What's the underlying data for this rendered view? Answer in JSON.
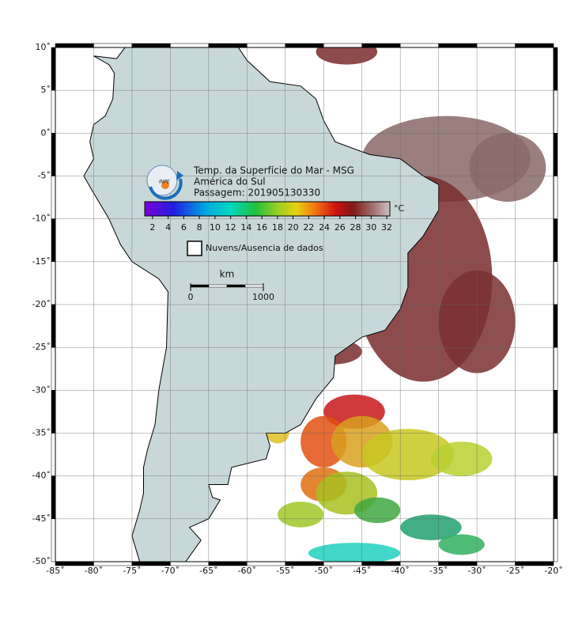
{
  "map": {
    "title": "Temp. da Superfície do Mar - MSG",
    "subtitle": "América do Sul",
    "pass": "Passagem: 201905130330",
    "logo": "INPE",
    "lon_range": [
      -85,
      -20
    ],
    "lat_range": [
      -50,
      10
    ],
    "lon_ticks": [
      {
        "value": -85,
        "label": "-85˚"
      },
      {
        "value": -80,
        "label": "-80˚"
      },
      {
        "value": -75,
        "label": "-75˚"
      },
      {
        "value": -70,
        "label": "-70˚"
      },
      {
        "value": -65,
        "label": "-65˚"
      },
      {
        "value": -60,
        "label": "-60˚"
      },
      {
        "value": -55,
        "label": "-55˚"
      },
      {
        "value": -50,
        "label": "-50˚"
      },
      {
        "value": -45,
        "label": "-45˚"
      },
      {
        "value": -40,
        "label": "-40˚"
      },
      {
        "value": -35,
        "label": "-35˚"
      },
      {
        "value": -30,
        "label": "-30˚"
      },
      {
        "value": -25,
        "label": "-25˚"
      },
      {
        "value": -20,
        "label": "-20˚"
      }
    ],
    "lat_ticks": [
      {
        "value": 10,
        "label": "10˚"
      },
      {
        "value": 5,
        "label": "5˚"
      },
      {
        "value": 0,
        "label": "0˚"
      },
      {
        "value": -5,
        "label": "-5˚"
      },
      {
        "value": -10,
        "label": "-10˚"
      },
      {
        "value": -15,
        "label": "-15˚"
      },
      {
        "value": -20,
        "label": "-20˚"
      },
      {
        "value": -25,
        "label": "-25˚"
      },
      {
        "value": -30,
        "label": "-30˚"
      },
      {
        "value": -35,
        "label": "-35˚"
      },
      {
        "value": -40,
        "label": "-40˚"
      },
      {
        "value": -45,
        "label": "-45˚"
      },
      {
        "value": -50,
        "label": "-50˚"
      }
    ],
    "colorbar": {
      "unit": "°C",
      "range": [
        1,
        32.4
      ],
      "ticks": [
        2,
        4,
        6,
        8,
        10,
        12,
        14,
        16,
        18,
        20,
        22,
        24,
        26,
        28,
        30,
        32
      ]
    },
    "legend": "Nuvens/Ausencia de dados",
    "scale": {
      "unit": "km",
      "ticks": [
        0,
        1000
      ]
    }
  }
}
